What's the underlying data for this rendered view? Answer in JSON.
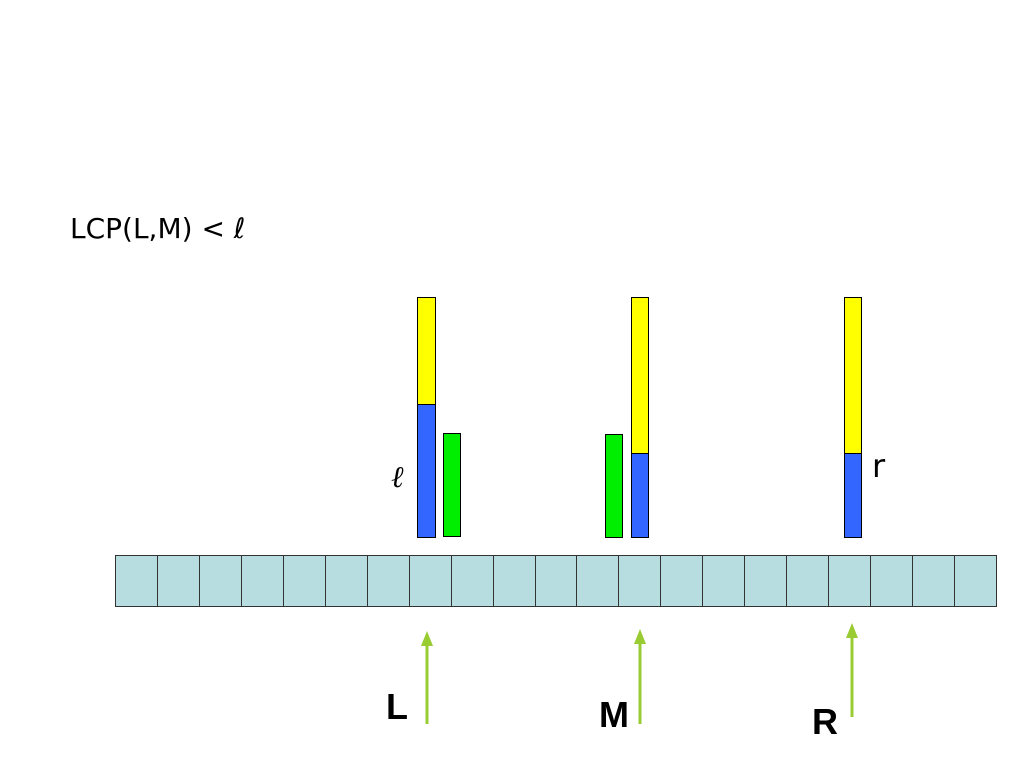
{
  "title": "LCP(L,M) < ℓ",
  "labels": {
    "ell": "ℓ",
    "r": "r"
  },
  "pointers": {
    "L": "L",
    "M": "M",
    "R": "R"
  },
  "array": {
    "cell_count": 21
  },
  "colors": {
    "prefix_match": "#3366ff",
    "suffix_rest": "#ffff00",
    "query_bar": "#00ee00",
    "array_cell": "#b7dde1",
    "arrow": "#99cc33"
  }
}
